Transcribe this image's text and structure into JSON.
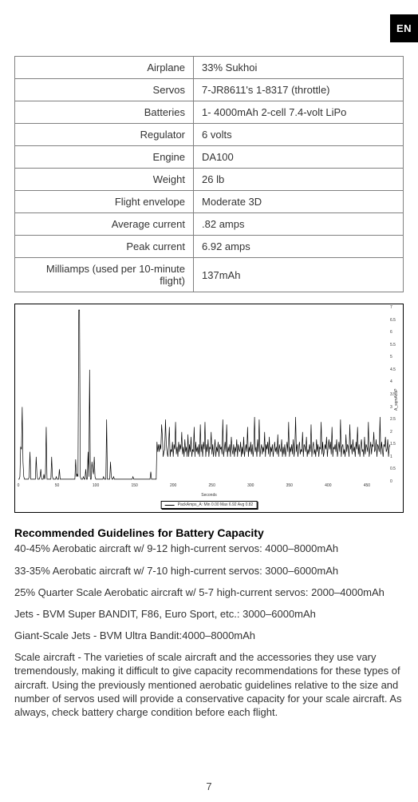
{
  "lang_tab": "EN",
  "specs": {
    "rows": [
      {
        "label": "Airplane",
        "value": "33% Sukhoi"
      },
      {
        "label": "Servos",
        "value": "7-JR8611's 1-8317 (throttle)"
      },
      {
        "label": "Batteries",
        "value": "1- 4000mAh 2-cell 7.4-volt LiPo"
      },
      {
        "label": "Regulator",
        "value": "6 volts"
      },
      {
        "label": "Engine",
        "value": "DA100"
      },
      {
        "label": "Weight",
        "value": "26 lb"
      },
      {
        "label": "Flight envelope",
        "value": "Moderate 3D"
      },
      {
        "label": "Average current",
        "value": ".82 amps"
      },
      {
        "label": "Peak current",
        "value": "6.92 amps"
      },
      {
        "label": "Milliamps (used per 10-minute flight)",
        "value": "137mAh"
      }
    ]
  },
  "chart": {
    "type": "line",
    "line_color": "#000000",
    "background": "#ffffff",
    "border_color": "#000000",
    "ylim": [
      0,
      7
    ],
    "ytick_step": 0.5,
    "yticks": [
      0,
      0.5,
      1,
      1.5,
      2,
      2.5,
      3,
      3.5,
      4,
      4.5,
      5,
      5.5,
      6,
      6.5,
      7
    ],
    "xlim": [
      0,
      480
    ],
    "xticks": [
      0,
      50,
      100,
      150,
      200,
      250,
      300,
      350,
      400,
      450
    ],
    "xlabel": "Seconds",
    "ylabel": "A_sqmAcoP",
    "legend": "PackAmps_A:  Min 0.00 Max 6.92 Avg 0.82",
    "values": [
      0.1,
      0.1,
      0.2,
      1.4,
      1.3,
      3.0,
      0.8,
      0.2,
      0.1,
      0.1,
      0.1,
      0.1,
      0.1,
      0.1,
      0.2,
      1.2,
      0.1,
      0.1,
      0.1,
      0.1,
      0.1,
      0.1,
      0.1,
      1.0,
      0.3,
      0.1,
      0.1,
      0.1,
      0.2,
      0.5,
      0.1,
      0.1,
      0.1,
      0.3,
      0.1,
      0.3,
      2.2,
      0.1,
      0.1,
      0.1,
      0.1,
      0.1,
      0.1,
      1.0,
      0.2,
      0.1,
      0.1,
      0.1,
      0.1,
      0.2,
      0.1,
      0.1,
      0.1,
      0.5,
      0.1,
      0.1,
      0.1,
      0.1,
      0.1,
      0.1,
      0.1,
      0.1,
      0.1,
      0.1,
      0.1,
      0.1,
      0.1,
      0.1,
      0.1,
      0.1,
      0.1,
      0.1,
      0.1,
      0.1,
      0.9,
      0.2,
      0.3,
      0.2,
      6.9,
      6.9,
      0.2,
      0.1,
      0.1,
      0.1,
      0.2,
      0.1,
      0.1,
      0.5,
      0.1,
      0.1,
      1.2,
      0.2,
      4.5,
      0.1,
      0.1,
      0.8,
      0.5,
      0.3,
      1.0,
      0.2,
      0.1,
      0.1,
      0.1,
      0.1,
      0.1,
      0.1,
      0.1,
      0.1,
      0.1,
      0.1,
      0.2,
      0.1,
      0.1,
      0.1,
      2.5,
      0.1,
      0.1,
      0.1,
      0.1,
      0.8,
      0.2,
      0.1,
      0.1,
      0.2,
      0.1,
      0.1,
      0.1,
      0.1,
      0.1,
      0.1,
      0.1,
      0.1,
      0.1,
      0.1,
      0.1,
      0.1,
      0.1,
      0.1,
      0.1,
      0.1,
      0.1,
      0.1,
      0.1,
      0.1,
      0.1,
      0.1,
      0.1,
      0.1,
      0.2,
      0.1,
      0.1,
      0.1,
      0.1,
      0.1,
      0.1,
      0.1,
      0.1,
      0.1,
      0.1,
      0.1,
      0.1,
      0.1,
      0.1,
      0.1,
      0.1,
      0.1,
      0.1,
      0.1,
      0.1,
      0.1,
      0.1,
      0.4,
      0.1,
      0.1,
      0.1,
      0.1,
      0.1,
      0.1,
      0.1,
      1.6,
      1.2,
      1.5,
      1.2,
      1.5,
      1.3,
      2.3,
      1.8,
      1.0,
      1.2,
      1.3,
      2.5,
      1.5,
      1.2,
      1.0,
      1.5,
      2.2,
      1.0,
      1.3,
      1.2,
      1.6,
      1.0,
      1.5,
      1.3,
      2.4,
      1.1,
      1.4,
      1.0,
      1.6,
      1.2,
      1.5,
      1.3,
      2.0,
      1.1,
      1.4,
      1.0,
      1.7,
      1.2,
      1.4,
      1.0,
      1.9,
      1.0,
      1.5,
      1.2,
      1.8,
      1.0,
      1.3,
      1.2,
      2.2,
      1.0,
      1.6,
      1.2,
      1.4,
      1.1,
      1.5,
      1.0,
      2.3,
      1.2,
      1.5,
      1.0,
      1.6,
      1.3,
      2.4,
      1.0,
      1.5,
      1.2,
      1.7,
      1.0,
      1.4,
      1.3,
      2.0,
      1.1,
      1.5,
      1.0,
      1.3,
      1.7,
      1.0,
      1.4,
      1.2,
      1.6,
      1.0,
      1.5,
      1.3,
      1.4,
      1.1,
      2.5,
      1.0,
      1.3,
      1.6,
      1.2,
      2.3,
      1.0,
      1.4,
      1.2,
      1.5,
      1.0,
      1.8,
      1.3,
      1.1,
      1.5,
      1.0,
      1.4,
      1.2,
      1.7,
      1.0,
      1.5,
      1.3,
      1.2,
      1.6,
      1.0,
      1.4,
      1.1,
      1.8,
      1.0,
      1.3,
      1.5,
      1.2,
      2.2,
      1.0,
      1.4,
      1.2,
      1.6,
      1.1,
      1.5,
      1.0,
      1.3,
      2.6,
      1.2,
      1.4,
      1.0,
      1.7,
      1.2,
      2.5,
      1.0,
      1.3,
      1.5,
      1.1,
      1.4,
      1.2,
      2.0,
      1.0,
      1.5,
      1.3,
      1.6,
      1.1,
      1.8,
      1.0,
      1.4,
      1.2,
      1.5,
      1.0,
      1.3,
      1.6,
      1.2,
      1.4,
      1.1,
      1.9,
      1.0,
      1.5,
      1.3,
      1.2,
      1.7,
      1.0,
      1.4,
      1.1,
      1.5,
      1.0,
      1.3,
      1.6,
      1.2,
      2.4,
      1.0,
      1.4,
      1.2,
      1.5,
      1.1,
      1.7,
      1.0,
      1.3,
      2.6,
      1.2,
      1.5,
      1.0,
      1.4,
      1.6,
      1.1,
      1.3,
      1.2,
      2.0,
      1.0,
      1.5,
      1.4,
      1.2,
      1.8,
      1.0,
      1.3,
      1.1,
      1.5,
      1.2,
      2.3,
      1.0,
      1.4,
      1.6,
      1.1,
      1.3,
      1.0,
      1.7,
      1.2,
      1.5,
      1.0,
      1.4,
      1.3,
      2.4,
      1.1,
      1.6,
      1.0,
      1.2,
      1.5,
      1.3,
      1.8,
      1.0,
      1.4,
      1.7,
      1.3,
      1.6,
      1.1,
      2.2,
      1.0,
      1.4,
      1.3,
      1.5,
      1.2,
      1.7,
      1.0,
      1.3,
      1.6,
      1.2,
      2.5,
      1.0,
      1.4,
      1.5,
      1.1,
      1.3,
      1.0,
      1.9,
      1.2,
      1.5,
      1.4,
      1.0,
      2.3,
      1.3,
      1.5,
      1.1,
      1.7,
      1.2,
      1.4,
      1.0,
      1.6,
      1.3,
      2.2,
      1.1,
      1.5,
      1.0,
      1.4,
      1.7,
      1.2,
      1.3,
      1.0,
      1.8,
      1.1,
      1.5,
      1.4,
      1.2,
      2.4,
      1.0,
      1.3,
      1.6,
      1.1,
      1.5,
      1.4,
      2.0,
      1.2,
      1.3,
      1.7,
      1.0,
      1.5,
      1.4,
      1.2,
      2.6,
      1.1,
      1.6,
      1.3,
      1.0,
      1.5,
      1.4,
      1.8,
      1.2,
      1.3,
      1.7,
      1.0,
      1.4,
      1.5,
      1.1,
      2.2,
      1.3,
      1.6,
      1.0,
      0.2,
      0.1,
      0.1,
      0.1
    ]
  },
  "content": {
    "heading": "Recommended Guidelines for Battery Capacity",
    "p1": "40-45% Aerobatic aircraft w/ 9-12 high-current servos: 4000–8000mAh",
    "p2": "33-35% Aerobatic aircraft w/ 7-10 high-current servos: 3000–6000mAh",
    "p3": "25% Quarter Scale Aerobatic aircraft w/ 5-7 high-current servos: 2000–4000mAh",
    "p4": "Jets - BVM Super BANDIT, F86, Euro Sport, etc.: 3000–6000mAh",
    "p5": "Giant-Scale Jets - BVM Ultra Bandit:4000–8000mAh",
    "p6": "Scale aircraft - The varieties of scale aircraft and the accessories they use vary tremendously, making it difficult to give capacity recommendations for these types of aircraft. Using the previously mentioned aerobatic guidelines relative to the size and number of servos used will provide a conservative capacity for your scale aircraft. As always, check battery charge condition before each flight."
  },
  "page_number": "7"
}
